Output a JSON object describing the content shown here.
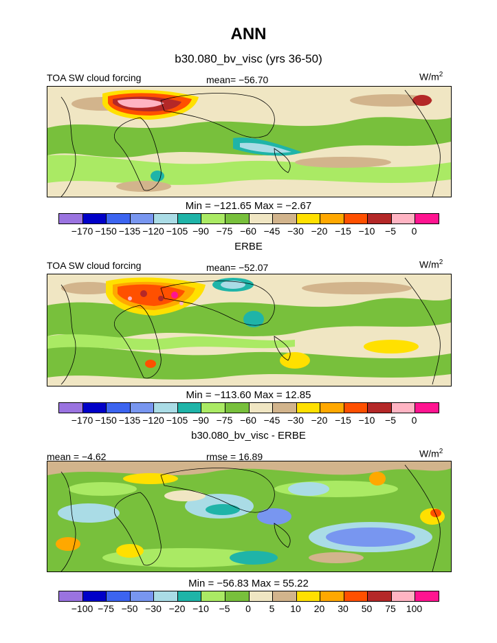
{
  "title": "ANN",
  "subtitle": "b30.080_bv_visc (yrs 36-50)",
  "palette_abs": [
    "#9a73e0",
    "#0000c8",
    "#3c64f0",
    "#7896f0",
    "#aadce6",
    "#1fb4a8",
    "#aaea64",
    "#78c03c",
    "#f0e6c3",
    "#d2b48c",
    "#ffe000",
    "#ffa800",
    "#ff5000",
    "#b42828",
    "#ffb4c3",
    "#ff1490"
  ],
  "palette_diff": [
    "#9a73e0",
    "#0000c8",
    "#3c64f0",
    "#7896f0",
    "#aadce6",
    "#1fb4a8",
    "#aaea64",
    "#78c03c",
    "#f0e6c3",
    "#d2b48c",
    "#ffe000",
    "#ffa800",
    "#ff5000",
    "#b42828",
    "#ffb4c3",
    "#ff1490"
  ],
  "panels": [
    {
      "left_label": "TOA SW cloud forcing",
      "center_label": "mean= −56.70",
      "units": "W/m",
      "units_sup": "2",
      "minmax": "Min = −121.65 Max =  −2.67",
      "ticks": [
        "−170",
        "−150",
        "−135",
        "−120",
        "−105",
        "−90",
        "−75",
        "−60",
        "−45",
        "−30",
        "−20",
        "−15",
        "−10",
        "−5",
        "0"
      ]
    },
    {
      "heading": "ERBE",
      "left_label": "TOA SW cloud forcing",
      "center_label": "mean= −52.07",
      "units": "W/m",
      "units_sup": "2",
      "minmax": "Min = −113.60 Max =  12.85",
      "ticks": [
        "−170",
        "−150",
        "−135",
        "−120",
        "−105",
        "−90",
        "−75",
        "−60",
        "−45",
        "−30",
        "−20",
        "−15",
        "−10",
        "−5",
        "0"
      ]
    },
    {
      "heading": "b30.080_bv_visc - ERBE",
      "left_label": "mean =   −4.62",
      "center_label": "rmse =  16.89",
      "units": "W/m",
      "units_sup": "2",
      "minmax": "Min = −56.83 Max =  55.22",
      "ticks": [
        "−100",
        "−75",
        "−50",
        "−30",
        "−20",
        "−10",
        "−5",
        "0",
        "5",
        "10",
        "20",
        "30",
        "50",
        "75",
        "100"
      ]
    }
  ]
}
